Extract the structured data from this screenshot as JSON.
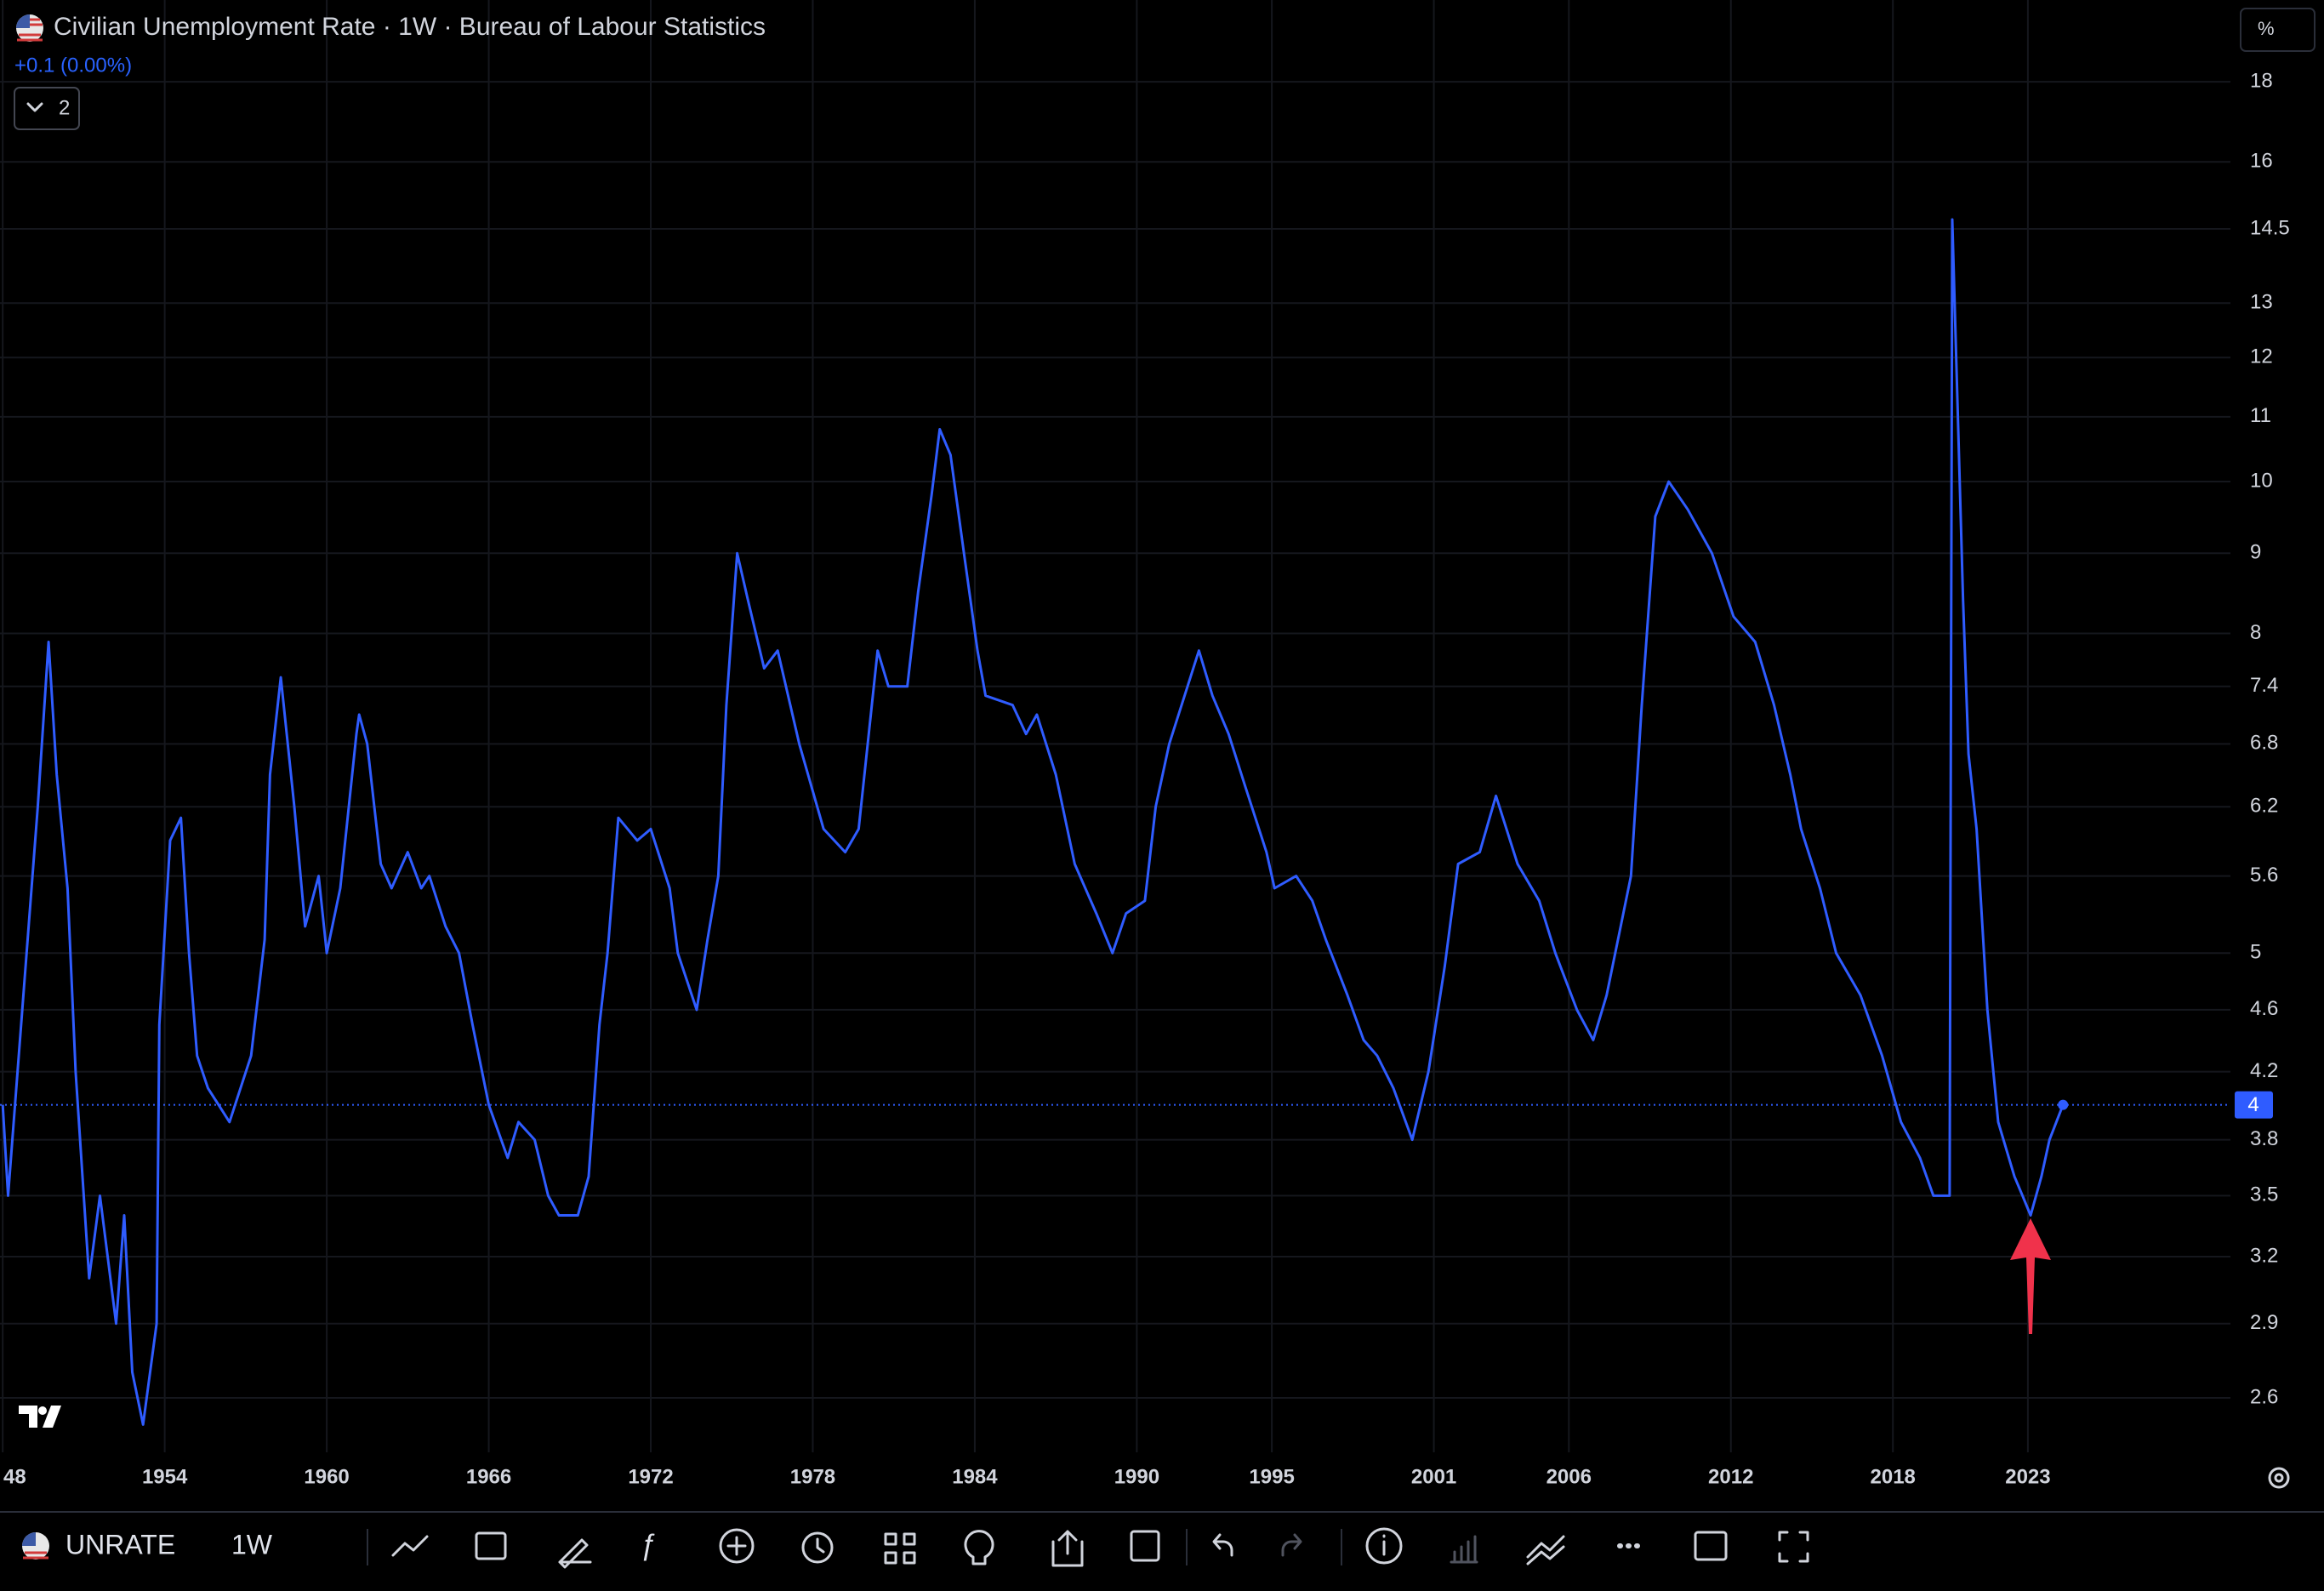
{
  "chart_data": {
    "type": "line",
    "title": "Civilian Unemployment Rate · 1W · Bureau of Labour Statistics",
    "change_label": "+0.1 (0.00%)",
    "indicators_count": 2,
    "scale_mode": "%",
    "symbol": "UNRATE",
    "interval": "1W",
    "log_scale": true,
    "grid": true,
    "x": [
      1948.0,
      1948.2,
      1949.3,
      1949.7,
      1950.0,
      1950.4,
      1950.7,
      1951.2,
      1951.6,
      1952.2,
      1952.5,
      1952.8,
      1953.2,
      1953.7,
      1953.8,
      1954.2,
      1954.6,
      1954.9,
      1955.2,
      1955.6,
      1956.4,
      1957.2,
      1957.7,
      1957.9,
      1958.3,
      1958.8,
      1959.2,
      1959.7,
      1960.0,
      1960.5,
      1961.1,
      1961.2,
      1961.5,
      1962.0,
      1962.4,
      1963.0,
      1963.5,
      1963.8,
      1964.4,
      1964.9,
      1965.4,
      1966.0,
      1966.7,
      1967.1,
      1967.7,
      1968.2,
      1968.6,
      1969.3,
      1969.7,
      1970.1,
      1970.4,
      1970.8,
      1971.5,
      1972.0,
      1972.7,
      1973.0,
      1973.7,
      1974.1,
      1974.5,
      1974.8,
      1975.2,
      1975.6,
      1976.2,
      1976.7,
      1977.5,
      1978.4,
      1979.2,
      1979.7,
      1980.4,
      1980.8,
      1981.5,
      1981.9,
      1982.4,
      1982.7,
      1983.1,
      1983.6,
      1984.1,
      1984.4,
      1985.4,
      1985.9,
      1986.3,
      1987.0,
      1987.7,
      1988.5,
      1989.1,
      1989.6,
      1990.3,
      1990.7,
      1991.2,
      1992.3,
      1992.8,
      1993.4,
      1994.0,
      1994.8,
      1995.1,
      1995.9,
      1996.5,
      1997.0,
      1997.8,
      1998.4,
      1998.9,
      1999.5,
      2000.2,
      2000.8,
      2001.4,
      2001.9,
      2002.7,
      2003.3,
      2004.1,
      2004.9,
      2005.5,
      2006.3,
      2006.9,
      2007.4,
      2008.3,
      2008.7,
      2009.2,
      2009.7,
      2010.4,
      2011.3,
      2012.1,
      2012.9,
      2013.6,
      2014.2,
      2014.6,
      2015.3,
      2015.9,
      2016.8,
      2017.6,
      2018.3,
      2019.0,
      2019.5,
      2019.9,
      2020.1,
      2020.2,
      2020.4,
      2020.6,
      2020.8,
      2021.1,
      2021.5,
      2021.9,
      2022.5,
      2022.8,
      2023.1,
      2023.5,
      2023.8,
      2024.3
    ],
    "series": [
      {
        "color": "#2f5cff",
        "values": [
          4.0,
          3.5,
          6.2,
          7.9,
          6.5,
          5.5,
          4.2,
          3.1,
          3.5,
          2.9,
          3.4,
          2.7,
          2.5,
          2.9,
          4.5,
          5.9,
          6.1,
          5.0,
          4.3,
          4.1,
          3.9,
          4.3,
          5.1,
          6.5,
          7.5,
          6.2,
          5.2,
          5.6,
          5.0,
          5.5,
          6.9,
          7.1,
          6.8,
          5.7,
          5.5,
          5.8,
          5.5,
          5.6,
          5.2,
          5.0,
          4.5,
          4.0,
          3.7,
          3.9,
          3.8,
          3.5,
          3.4,
          3.4,
          3.6,
          4.5,
          5.0,
          6.1,
          5.9,
          6.0,
          5.5,
          5.0,
          4.6,
          5.1,
          5.6,
          7.2,
          9.0,
          8.4,
          7.6,
          7.8,
          6.8,
          6.0,
          5.8,
          6.0,
          7.8,
          7.4,
          7.4,
          8.5,
          9.8,
          10.8,
          10.4,
          9.0,
          7.8,
          7.3,
          7.2,
          6.9,
          7.1,
          6.5,
          5.7,
          5.3,
          5.0,
          5.3,
          5.4,
          6.2,
          6.8,
          7.8,
          7.3,
          6.9,
          6.4,
          5.8,
          5.5,
          5.6,
          5.4,
          5.1,
          4.7,
          4.4,
          4.3,
          4.1,
          3.8,
          4.2,
          4.9,
          5.7,
          5.8,
          6.3,
          5.7,
          5.4,
          5.0,
          4.6,
          4.4,
          4.7,
          5.6,
          7.2,
          9.5,
          10.0,
          9.6,
          9.0,
          8.2,
          7.9,
          7.2,
          6.5,
          6.0,
          5.5,
          5.0,
          4.7,
          4.3,
          3.9,
          3.7,
          3.5,
          3.5,
          3.5,
          14.7,
          11.1,
          8.4,
          6.7,
          6.0,
          4.6,
          3.9,
          3.6,
          3.5,
          3.4,
          3.6,
          3.8,
          4
        ]
      }
    ],
    "xlim": [
      1947.9,
      2030.5
    ],
    "xticks": [
      {
        "value": 1948,
        "label": "48"
      },
      1954,
      1960,
      1966,
      1972,
      1978,
      1984,
      1990,
      1995,
      2001,
      2006,
      2012,
      2018,
      2023
    ],
    "ylim": [
      2.4,
      20.3
    ],
    "yticks": [
      2.6,
      2.9,
      3.2,
      3.5,
      3.8,
      4.2,
      4.6,
      5,
      5.6,
      6.2,
      6.8,
      7.4,
      8,
      9,
      10,
      11,
      12,
      13,
      14.5,
      16,
      18
    ]
  }
}
